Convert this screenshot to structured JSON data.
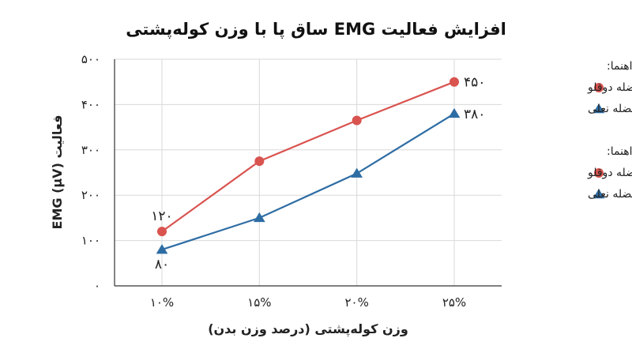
{
  "chart_data": {
    "type": "line",
    "title": "افزایش فعالیت EMG ساق پا با وزن کوله‌پشتی",
    "xlabel": "وزن کوله‌پشتی (درصد وزن بدن)",
    "ylabel": "فعالیت EMG (μV)",
    "categories": [
      "۱۰%",
      "۱۵%",
      "۲۰%",
      "۲۵%"
    ],
    "ylim": [
      0,
      500
    ],
    "yticks": [
      0,
      100,
      200,
      300,
      400,
      500
    ],
    "ytick_labels": [
      "۰",
      "۱۰۰",
      "۲۰۰",
      "۳۰۰",
      "۴۰۰",
      "۵۰۰"
    ],
    "grid": true,
    "series": [
      {
        "name": "عضله دوقلو",
        "marker": "circle",
        "color": "#d9534f",
        "values": [
          120,
          275,
          365,
          450
        ],
        "labels": [
          {
            "index": 0,
            "text": "۱۲۰"
          },
          {
            "index": 3,
            "text": "۴۵۰"
          }
        ]
      },
      {
        "name": "عضله نعلی",
        "marker": "triangle",
        "color": "#2e6da4",
        "values": [
          80,
          150,
          248,
          380
        ],
        "labels": [
          {
            "index": 0,
            "text": "۸۰"
          },
          {
            "index": 3,
            "text": "۳۸۰"
          }
        ]
      }
    ],
    "legends": [
      {
        "title": "راهنما:",
        "entries": [
          {
            "label": "عضله دوقلو",
            "marker": "circle",
            "color": "#d9534f"
          },
          {
            "label": "عضله نعلی",
            "marker": "triangle",
            "color": "#2e6da4"
          }
        ]
      },
      {
        "title": "راهنما:",
        "entries": [
          {
            "label": "عضله دوقلو",
            "marker": "circle",
            "color": "#d9534f"
          },
          {
            "label": "عضله نعلی",
            "marker": "triangle",
            "color": "#2e6da4"
          }
        ]
      }
    ],
    "legend_position": "right"
  }
}
